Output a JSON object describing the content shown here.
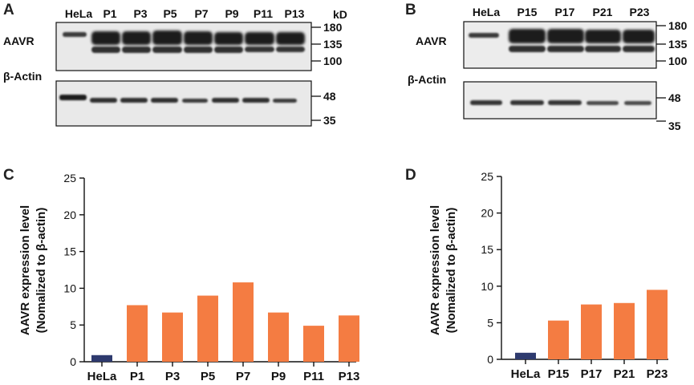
{
  "panels": {
    "A": {
      "label": "A",
      "unit": "kD",
      "lanes": [
        "HeLa",
        "P1",
        "P3",
        "P5",
        "P7",
        "P9",
        "P11",
        "P13"
      ],
      "rows": [
        "AAVR",
        "β-Actin"
      ],
      "markers_top": [
        "180",
        "135",
        "100"
      ],
      "markers_bottom": [
        "48",
        "35"
      ]
    },
    "B": {
      "label": "B",
      "lanes": [
        "HeLa",
        "P15",
        "P17",
        "P21",
        "P23"
      ],
      "rows": [
        "AAVR",
        "β-Actin"
      ],
      "markers_top": [
        "180",
        "135",
        "100"
      ],
      "markers_bottom": [
        "48",
        "35"
      ]
    },
    "C": {
      "label": "C"
    },
    "D": {
      "label": "D"
    }
  },
  "colors": {
    "hela_bar": "#2e3a6e",
    "sample_bar": "#f47c42",
    "axis": "#111111",
    "blot_bg": "#e9e9e9",
    "band": "#1a1a1a"
  },
  "chart_data": [
    {
      "type": "bar",
      "panel": "C",
      "title": "",
      "xlabel": "",
      "ylabel": "AAVR expression level",
      "ylabel_sub": "(Nomalized to β-actin)",
      "categories": [
        "HeLa",
        "P1",
        "P3",
        "P5",
        "P7",
        "P9",
        "P11",
        "P13"
      ],
      "values": [
        0.9,
        7.7,
        6.7,
        9.0,
        10.8,
        6.7,
        4.9,
        6.3
      ],
      "ylim": [
        0,
        25
      ],
      "yticks": [
        "0",
        "5",
        "10",
        "15",
        "20",
        "25"
      ],
      "grid": false
    },
    {
      "type": "bar",
      "panel": "D",
      "title": "",
      "xlabel": "",
      "ylabel": "AAVR expression level",
      "ylabel_sub": "(Nomalized to β-actin)",
      "categories": [
        "HeLa",
        "P15",
        "P17",
        "P21",
        "P23"
      ],
      "values": [
        0.9,
        5.3,
        7.5,
        7.7,
        9.5
      ],
      "ylim": [
        0,
        25
      ],
      "yticks": [
        "0",
        "5",
        "10",
        "15",
        "20",
        "25"
      ],
      "grid": false
    }
  ]
}
